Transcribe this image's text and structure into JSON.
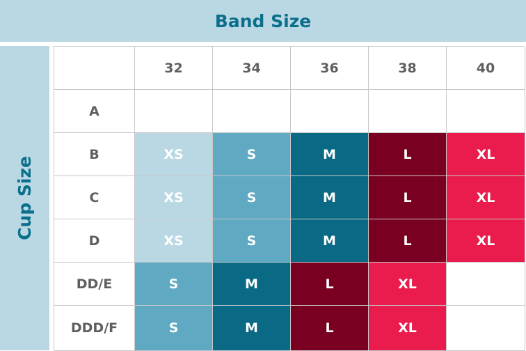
{
  "band_title": "Band Size",
  "cup_title": "Cup Size",
  "band_sizes": [
    "32",
    "34",
    "36",
    "38",
    "40"
  ],
  "colors": {
    "XS": "#b9d8e3",
    "S": "#5fa9c3",
    "M": "#0a6a86",
    "L": "#7a0022",
    "XL": "#ea1b4d",
    "header_bg": "#b9d8e3",
    "title_text": "#0b6f8c"
  },
  "rows": [
    {
      "cup": "A",
      "sizes": [
        "",
        "",
        "",
        "",
        ""
      ]
    },
    {
      "cup": "B",
      "sizes": [
        "XS",
        "S",
        "M",
        "L",
        "XL"
      ]
    },
    {
      "cup": "C",
      "sizes": [
        "XS",
        "S",
        "M",
        "L",
        "XL"
      ]
    },
    {
      "cup": "D",
      "sizes": [
        "XS",
        "S",
        "M",
        "L",
        "XL"
      ]
    },
    {
      "cup": "DD/E",
      "sizes": [
        "S",
        "M",
        "L",
        "XL",
        ""
      ]
    },
    {
      "cup": "DDD/F",
      "sizes": [
        "S",
        "M",
        "L",
        "XL",
        ""
      ]
    }
  ]
}
